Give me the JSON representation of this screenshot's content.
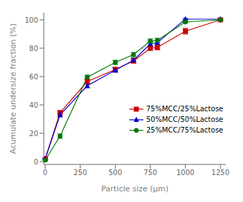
{
  "chart_data": {
    "type": "line",
    "xlabel": "Particle size (μm)",
    "ylabel": "Acumulate undersize fraction (%)",
    "xlim": [
      -10,
      1290
    ],
    "ylim": [
      -2,
      105
    ],
    "xticks": [
      0,
      250,
      500,
      750,
      1000,
      1250
    ],
    "yticks": [
      0,
      20,
      40,
      60,
      80,
      100
    ],
    "grid": false,
    "legend": "lower right",
    "series": [
      {
        "name": "75%MCC/25%Lactose",
        "color": "#cc0000",
        "marker": "square",
        "x": [
          0,
          106,
          300,
          500,
          630,
          750,
          800,
          1000,
          1250
        ],
        "values": [
          2.0,
          34.5,
          56.5,
          65.0,
          71.0,
          80.0,
          80.5,
          92.0,
          100.0
        ],
        "yerr": [
          0.5,
          1.5,
          1.5,
          1.5,
          1.5,
          1.5,
          1.5,
          2.0,
          0.5
        ]
      },
      {
        "name": "50%MCC/50%Lactose",
        "color": "#0000cc",
        "marker": "triangle",
        "x": [
          0,
          106,
          300,
          500,
          630,
          750,
          800,
          1000,
          1250
        ],
        "values": [
          2.0,
          33.0,
          53.5,
          64.5,
          71.5,
          83.0,
          84.0,
          100.5,
          100.5
        ],
        "yerr": [
          0.5,
          1.5,
          1.5,
          1.5,
          1.5,
          1.5,
          1.5,
          0.5,
          0.5
        ]
      },
      {
        "name": "25%MCC/75%Lactose",
        "color": "#007700",
        "marker": "circle",
        "x": [
          0,
          106,
          300,
          500,
          630,
          750,
          800,
          1000,
          1250
        ],
        "values": [
          1.0,
          18.0,
          59.5,
          70.0,
          75.5,
          85.0,
          85.5,
          98.5,
          100.0
        ],
        "yerr": [
          0.5,
          1.5,
          1.5,
          1.5,
          1.5,
          1.5,
          1.5,
          0.5,
          0.5
        ]
      }
    ]
  }
}
